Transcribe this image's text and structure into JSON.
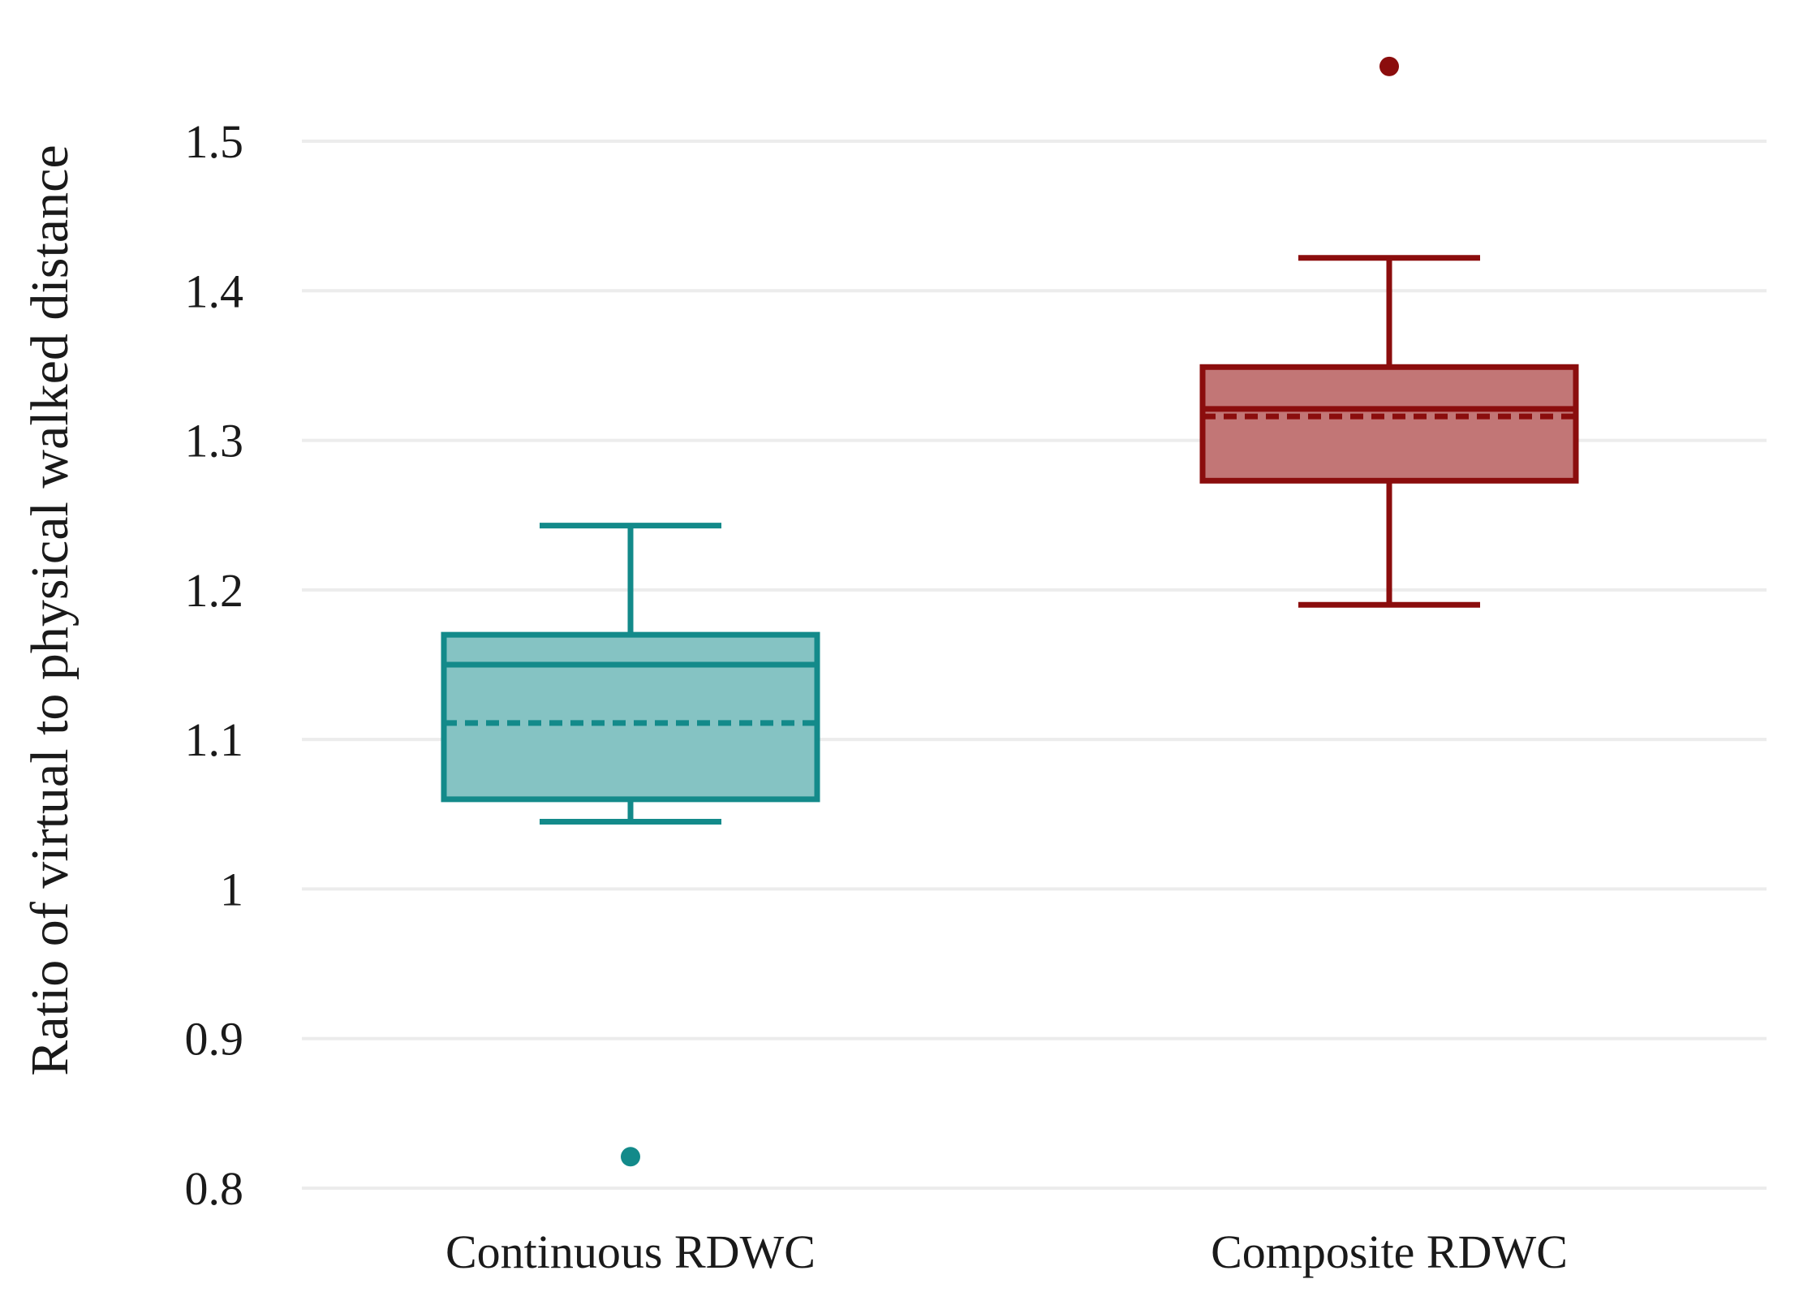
{
  "chart_data": {
    "type": "box",
    "title": "",
    "xlabel": "",
    "ylabel": "Ratio of virtual to physical walked distance",
    "ylim": [
      0.8,
      1.5
    ],
    "yticks": [
      0.8,
      0.9,
      1,
      1.1,
      1.2,
      1.3,
      1.4,
      1.5
    ],
    "ytick_labels": [
      "0.8",
      "0.9",
      "1",
      "1.1",
      "1.2",
      "1.3",
      "1.4",
      "1.5"
    ],
    "grid": true,
    "legend": "none",
    "categories": [
      "Continuous RDWC",
      "Composite RDWC"
    ],
    "series": [
      {
        "category": "Continuous RDWC",
        "color": "#138a8a",
        "fill": "#85c3c3",
        "whisker_low": 1.045,
        "q1": 1.06,
        "median": 1.15,
        "mean": 1.111,
        "q3": 1.17,
        "whisker_high": 1.243,
        "outliers": [
          0.821
        ]
      },
      {
        "category": "Composite RDWC",
        "color": "#8b0d0d",
        "fill": "#c27676",
        "whisker_low": 1.19,
        "q1": 1.273,
        "median": 1.321,
        "mean": 1.316,
        "q3": 1.349,
        "whisker_high": 1.422,
        "outliers": [
          1.55
        ]
      }
    ]
  }
}
